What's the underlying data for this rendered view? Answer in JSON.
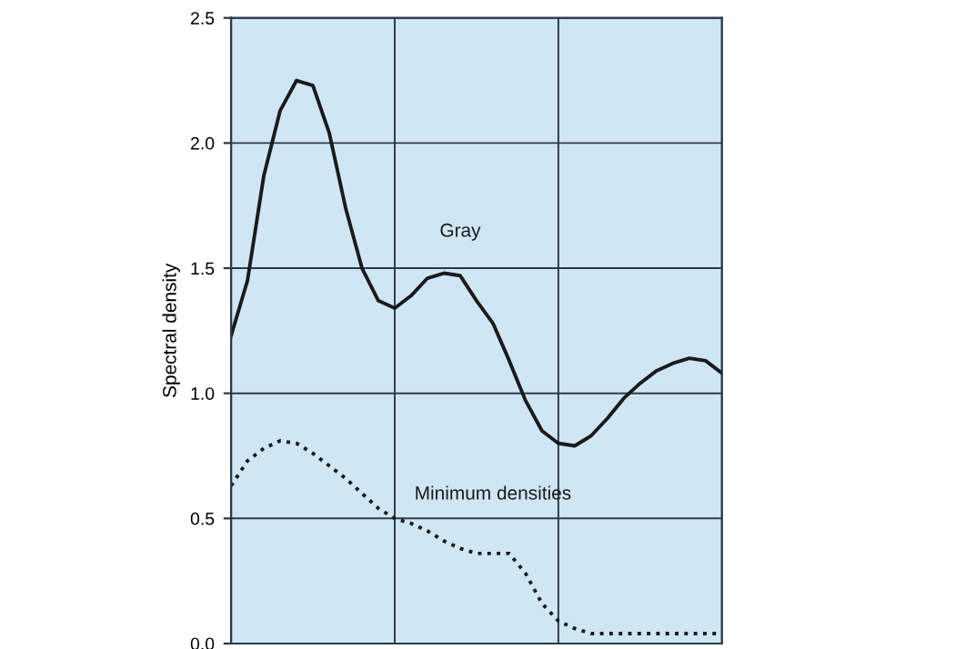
{
  "chart_data": {
    "type": "line",
    "ylabel": "Spectral density",
    "categories": [
      null,
      null,
      null,
      null,
      null,
      null,
      null,
      null,
      null,
      null,
      null,
      null,
      null,
      null,
      null,
      null,
      null,
      null,
      null,
      null,
      null,
      null,
      null,
      null,
      null,
      null,
      null,
      null,
      null,
      null,
      null
    ],
    "series": [
      {
        "name": "Gray",
        "color": "#1a1a1a",
        "line_style": "solid",
        "values": [
          1.23,
          1.45,
          1.87,
          2.13,
          2.25,
          2.23,
          2.04,
          1.74,
          1.5,
          1.37,
          1.34,
          1.39,
          1.46,
          1.48,
          1.47,
          1.37,
          1.28,
          1.13,
          0.97,
          0.85,
          0.8,
          0.79,
          0.83,
          0.9,
          0.98,
          1.04,
          1.09,
          1.12,
          1.14,
          1.13,
          1.08
        ]
      },
      {
        "name": "Minimum densities",
        "color": "#1a1a1a",
        "line_style": "dotted",
        "values": [
          0.63,
          0.73,
          0.78,
          0.81,
          0.8,
          0.76,
          0.71,
          0.66,
          0.6,
          0.54,
          0.5,
          0.48,
          0.45,
          0.41,
          0.38,
          0.36,
          0.36,
          0.36,
          0.28,
          0.16,
          0.09,
          0.06,
          0.04,
          0.04,
          0.04,
          0.04,
          0.04,
          0.04,
          0.04,
          0.04,
          0.04
        ]
      }
    ],
    "ylim": [
      0,
      2.5
    ],
    "yticks": [
      {
        "value": 0,
        "label": "0.0"
      },
      {
        "value": 0.5,
        "label": "0.5"
      },
      {
        "value": 1,
        "label": "1.0"
      },
      {
        "value": 1.5,
        "label": "1.5"
      },
      {
        "value": 2,
        "label": "2.0"
      },
      {
        "value": 2.5,
        "label": "2.5"
      }
    ],
    "grid": true,
    "legend": false,
    "marker": "none"
  }
}
